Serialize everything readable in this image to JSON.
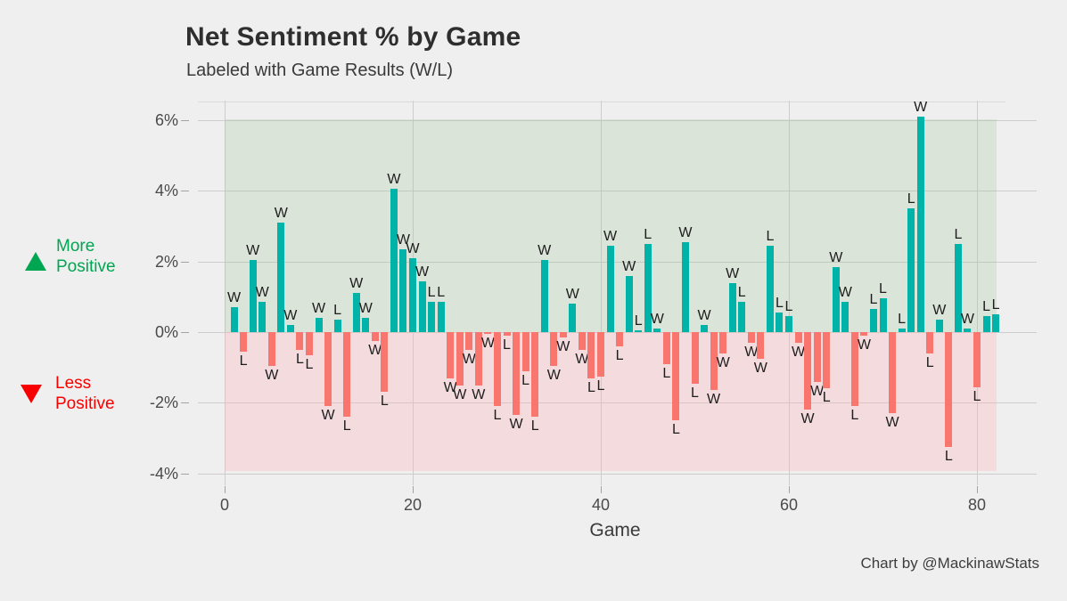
{
  "title": "Net Sentiment % by Game",
  "subtitle": "Labeled with Game Results (W/L)",
  "caption": "Chart by @MackinawStats",
  "side_annotations": {
    "more_positive": {
      "icon": "triangle-up-icon",
      "line1": "More",
      "line2": "Positive",
      "color": "#00A651"
    },
    "less_positive": {
      "icon": "triangle-down-icon",
      "line1": "Less",
      "line2": "Positive",
      "color": "#F90000"
    }
  },
  "colors": {
    "positive_bar": "#00B3A9",
    "negative_bar": "#F8766D",
    "band_positive": "rgba(150,190,140,0.22)",
    "band_negative": "rgba(255,170,180,0.28)",
    "gridline": "#CDCDCD",
    "background": "#EFEFEF"
  },
  "chart_data": {
    "type": "bar",
    "title": "Net Sentiment % by Game",
    "subtitle": "Labeled with Game Results (W/L)",
    "xlabel": "Game",
    "ylabel": "",
    "x_ticks": [
      0,
      20,
      40,
      60,
      80
    ],
    "y_ticks": [
      "6%",
      "4%",
      "2%",
      "0%",
      "-2%",
      "-4%"
    ],
    "y_tick_values": [
      6,
      4,
      2,
      0,
      -2,
      -4
    ],
    "ylim": [
      -4.6,
      6.5
    ],
    "xlim": [
      -3,
      86
    ],
    "grid": true,
    "legend_position": "left-margin-annotations",
    "series_name": "Net Sentiment %",
    "games": [
      {
        "game": 1,
        "value": 0.7,
        "result": "W"
      },
      {
        "game": 2,
        "value": -0.55,
        "result": "L"
      },
      {
        "game": 3,
        "value": 2.05,
        "result": "W"
      },
      {
        "game": 4,
        "value": 0.85,
        "result": "W"
      },
      {
        "game": 5,
        "value": -0.95,
        "result": "W"
      },
      {
        "game": 6,
        "value": 3.1,
        "result": "W"
      },
      {
        "game": 7,
        "value": 0.2,
        "result": "W"
      },
      {
        "game": 8,
        "value": -0.5,
        "result": "L"
      },
      {
        "game": 9,
        "value": -0.65,
        "result": "L"
      },
      {
        "game": 10,
        "value": 0.4,
        "result": "W"
      },
      {
        "game": 11,
        "value": -2.1,
        "result": "W"
      },
      {
        "game": 12,
        "value": 0.35,
        "result": "L"
      },
      {
        "game": 13,
        "value": -2.4,
        "result": "L"
      },
      {
        "game": 14,
        "value": 1.1,
        "result": "W"
      },
      {
        "game": 15,
        "value": 0.4,
        "result": "W"
      },
      {
        "game": 16,
        "value": -0.25,
        "result": "W"
      },
      {
        "game": 17,
        "value": -1.7,
        "result": "L"
      },
      {
        "game": 18,
        "value": 4.05,
        "result": "W"
      },
      {
        "game": 19,
        "value": 2.35,
        "result": "W"
      },
      {
        "game": 20,
        "value": 2.1,
        "result": "W"
      },
      {
        "game": 21,
        "value": 1.45,
        "result": "W"
      },
      {
        "game": 22,
        "value": 0.85,
        "result": "L"
      },
      {
        "game": 23,
        "value": 0.85,
        "result": "L"
      },
      {
        "game": 24,
        "value": -1.3,
        "result": "W"
      },
      {
        "game": 25,
        "value": -1.5,
        "result": "W"
      },
      {
        "game": 26,
        "value": -0.5,
        "result": "W"
      },
      {
        "game": 27,
        "value": -1.5,
        "result": "W"
      },
      {
        "game": 28,
        "value": -0.05,
        "result": "W"
      },
      {
        "game": 29,
        "value": -2.1,
        "result": "L"
      },
      {
        "game": 30,
        "value": -0.1,
        "result": "L"
      },
      {
        "game": 31,
        "value": -2.35,
        "result": "W"
      },
      {
        "game": 32,
        "value": -1.1,
        "result": "L"
      },
      {
        "game": 33,
        "value": -2.4,
        "result": "L"
      },
      {
        "game": 34,
        "value": 2.05,
        "result": "W"
      },
      {
        "game": 35,
        "value": -0.95,
        "result": "W"
      },
      {
        "game": 36,
        "value": -0.15,
        "result": "W"
      },
      {
        "game": 37,
        "value": 0.8,
        "result": "W"
      },
      {
        "game": 38,
        "value": -0.5,
        "result": "W"
      },
      {
        "game": 39,
        "value": -1.3,
        "result": "L"
      },
      {
        "game": 40,
        "value": -1.25,
        "result": "L"
      },
      {
        "game": 41,
        "value": 2.45,
        "result": "W"
      },
      {
        "game": 42,
        "value": -0.4,
        "result": "L"
      },
      {
        "game": 43,
        "value": 1.6,
        "result": "W"
      },
      {
        "game": 44,
        "value": 0.05,
        "result": "L"
      },
      {
        "game": 45,
        "value": 2.5,
        "result": "L"
      },
      {
        "game": 46,
        "value": 0.1,
        "result": "W"
      },
      {
        "game": 47,
        "value": -0.9,
        "result": "L"
      },
      {
        "game": 48,
        "value": -2.5,
        "result": "L"
      },
      {
        "game": 49,
        "value": 2.55,
        "result": "W"
      },
      {
        "game": 50,
        "value": -1.45,
        "result": "L"
      },
      {
        "game": 51,
        "value": 0.2,
        "result": "W"
      },
      {
        "game": 52,
        "value": -1.65,
        "result": "W"
      },
      {
        "game": 53,
        "value": -0.6,
        "result": "W"
      },
      {
        "game": 54,
        "value": 1.4,
        "result": "W"
      },
      {
        "game": 55,
        "value": 0.85,
        "result": "L"
      },
      {
        "game": 56,
        "value": -0.3,
        "result": "W"
      },
      {
        "game": 57,
        "value": -0.75,
        "result": "W"
      },
      {
        "game": 58,
        "value": 2.45,
        "result": "L"
      },
      {
        "game": 59,
        "value": 0.55,
        "result": "L"
      },
      {
        "game": 60,
        "value": 0.45,
        "result": "L"
      },
      {
        "game": 61,
        "value": -0.3,
        "result": "W"
      },
      {
        "game": 62,
        "value": -2.2,
        "result": "W"
      },
      {
        "game": 63,
        "value": -1.4,
        "result": "W"
      },
      {
        "game": 64,
        "value": -1.6,
        "result": "L"
      },
      {
        "game": 65,
        "value": 1.85,
        "result": "W"
      },
      {
        "game": 66,
        "value": 0.85,
        "result": "W"
      },
      {
        "game": 67,
        "value": -2.1,
        "result": "L"
      },
      {
        "game": 68,
        "value": -0.1,
        "result": "W"
      },
      {
        "game": 69,
        "value": 0.65,
        "result": "L"
      },
      {
        "game": 70,
        "value": 0.95,
        "result": "L"
      },
      {
        "game": 71,
        "value": -2.3,
        "result": "W"
      },
      {
        "game": 72,
        "value": 0.1,
        "result": "L"
      },
      {
        "game": 73,
        "value": 3.5,
        "result": "L"
      },
      {
        "game": 74,
        "value": 6.1,
        "result": "W"
      },
      {
        "game": 75,
        "value": -0.6,
        "result": "L"
      },
      {
        "game": 76,
        "value": 0.35,
        "result": "W"
      },
      {
        "game": 77,
        "value": -3.25,
        "result": "L"
      },
      {
        "game": 78,
        "value": 2.5,
        "result": "L"
      },
      {
        "game": 79,
        "value": 0.1,
        "result": "W"
      },
      {
        "game": 80,
        "value": -1.55,
        "result": "L"
      },
      {
        "game": 81,
        "value": 0.45,
        "result": "L"
      },
      {
        "game": 82,
        "value": 0.5,
        "result": "L"
      }
    ]
  }
}
